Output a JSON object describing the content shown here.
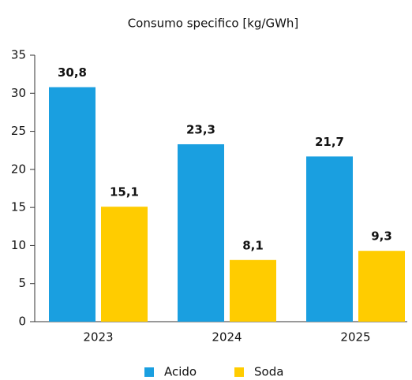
{
  "chart_data": {
    "type": "bar",
    "title": "Consumo specifico [kg/GWh]",
    "categories": [
      "2023",
      "2024",
      "2025"
    ],
    "series": [
      {
        "name": "Acido",
        "color": "#1a9fe0",
        "values": [
          30.8,
          23.3,
          21.7
        ],
        "value_labels": [
          "30,8",
          "23,3",
          "21,7"
        ]
      },
      {
        "name": "Soda",
        "color": "#ffcc00",
        "values": [
          15.1,
          8.1,
          9.3
        ],
        "value_labels": [
          "15,1",
          "8,1",
          "9,3"
        ]
      }
    ],
    "ylim": [
      0,
      35
    ],
    "yticks": [
      0,
      5,
      10,
      15,
      20,
      25,
      30,
      35
    ],
    "grid": false,
    "legend": "bottom"
  }
}
